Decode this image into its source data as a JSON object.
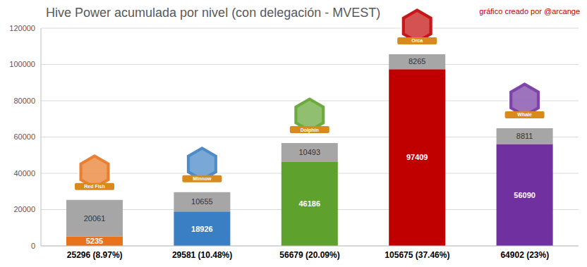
{
  "chart_data": {
    "type": "bar",
    "title": "Hive Power acumulada por nivel (con delegación - MVEST)",
    "annotation": "gráfico creado por @arcange",
    "categories": [
      "25296 (8.97%)",
      "29581 (10.48%)",
      "56679 (20.09%)",
      "105675 (37.46%)",
      "64902 (23%)"
    ],
    "badges": [
      "Red Fish",
      "Minnow",
      "Dolphin",
      "Orca",
      "Whale"
    ],
    "series": [
      {
        "colors": [
          "#e8731c",
          "#3a7fc4",
          "#5ea12c",
          "#c00000",
          "#7030a0"
        ],
        "values": [
          5235,
          18926,
          46186,
          97409,
          56090
        ]
      },
      {
        "color": "#a6a6a6",
        "values": [
          20061,
          10655,
          10493,
          8265,
          8811
        ]
      }
    ],
    "stacked": true,
    "data_labels": true,
    "ylim": [
      0,
      120000
    ],
    "yticks": [
      0,
      20000,
      40000,
      60000,
      80000,
      100000,
      120000
    ],
    "grid": true
  }
}
